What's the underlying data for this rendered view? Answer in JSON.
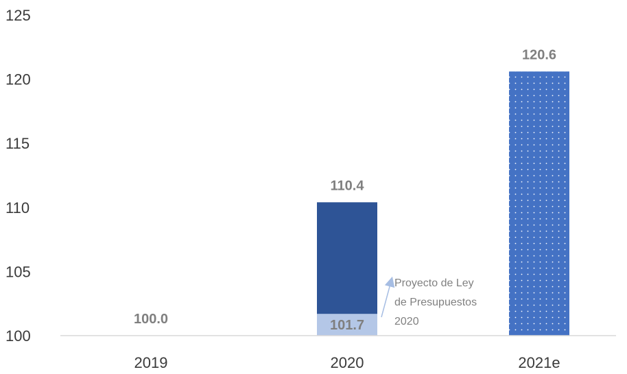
{
  "chart_data": {
    "type": "bar",
    "categories": [
      "2019",
      "2020",
      "2021e"
    ],
    "values": [
      100.0,
      110.4,
      120.6
    ],
    "inner_value": {
      "category": "2020",
      "value": 101.7
    },
    "value_labels": [
      "100.0",
      "110.4",
      "120.6"
    ],
    "inner_value_label": "101.7",
    "y_tick_labels": [
      "100",
      "105",
      "110",
      "115",
      "120",
      "125"
    ],
    "ylim": [
      100,
      125
    ],
    "grid": false,
    "annotation_lines": [
      "Proyecto de Ley",
      "de Presupuestos",
      "2020"
    ],
    "colors": {
      "bar_2020": "#2e5496",
      "inner_2020": "#b4c7e7",
      "bar_2021e": "#4472c4",
      "label": "#7f7f7f",
      "axis": "#d9d9d9",
      "arrow": "#a6bde3"
    }
  }
}
